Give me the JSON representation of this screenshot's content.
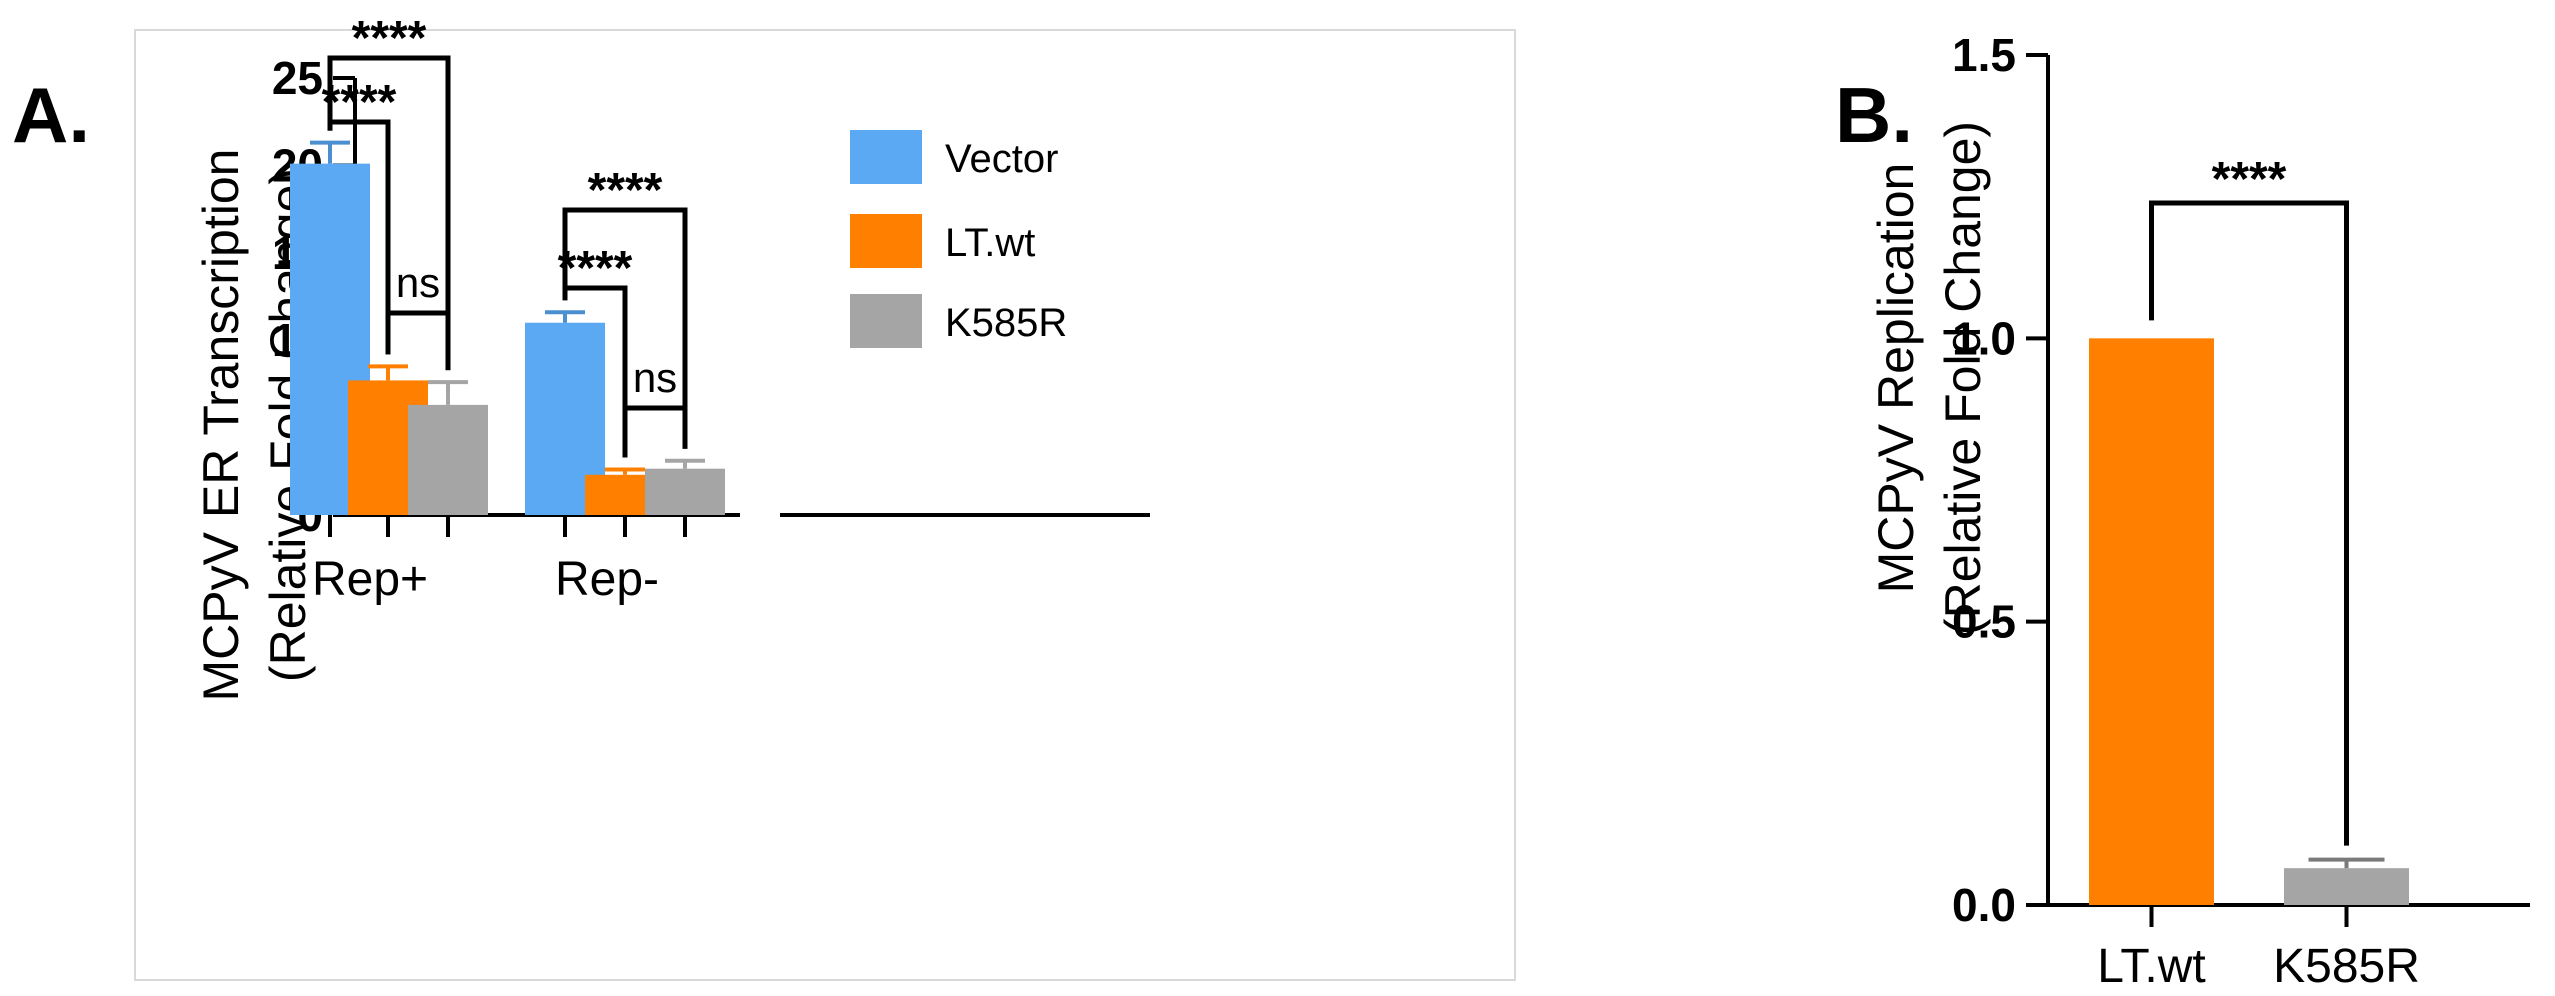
{
  "colors": {
    "vector": "#5aa9f2",
    "lt_wt": "#ff8000",
    "k585r": "#a5a5a5",
    "vector_err": "#4a8fd0",
    "lt_wt_err": "#ff8000",
    "k585r_err": "#a5a5a5"
  },
  "chart_data": [
    {
      "panel": "A.",
      "type": "bar",
      "categories": [
        "Rep+",
        "Rep-"
      ],
      "ylabel_line1": "MCPyV ER Transcription",
      "ylabel_line2": "(Relative Fold Change)",
      "ylim": [
        0,
        25
      ],
      "yticks": [
        "0",
        "5",
        "10",
        "15",
        "20",
        "25"
      ],
      "ytick_values": [
        0,
        5,
        10,
        15,
        20,
        25
      ],
      "legend_position": "right",
      "series": [
        {
          "name": "Vector",
          "color_key": "vector",
          "values": [
            20.1,
            11.0
          ],
          "errors": [
            1.2,
            0.6
          ]
        },
        {
          "name": "LT.wt",
          "color_key": "lt_wt",
          "values": [
            7.7,
            2.3
          ],
          "errors": [
            0.8,
            0.3
          ]
        },
        {
          "name": "K585R",
          "color_key": "k585r",
          "values": [
            6.3,
            2.65
          ],
          "errors": [
            1.3,
            0.45
          ]
        }
      ],
      "annotations": [
        {
          "group": 0,
          "from": 0,
          "to": 1,
          "label": "****"
        },
        {
          "group": 0,
          "from": 0,
          "to": 2,
          "label": "****"
        },
        {
          "group": 0,
          "from": 1,
          "to": 2,
          "label": "ns"
        },
        {
          "group": 1,
          "from": 0,
          "to": 1,
          "label": "****"
        },
        {
          "group": 1,
          "from": 0,
          "to": 2,
          "label": "****"
        },
        {
          "group": 1,
          "from": 1,
          "to": 2,
          "label": "ns"
        }
      ]
    },
    {
      "panel": "B.",
      "type": "bar",
      "categories": [
        "LT.wt",
        "K585R"
      ],
      "ylabel_line1": "MCPyV Replication",
      "ylabel_line2": "(Relative Fold Change)",
      "ylim": [
        0,
        1.5
      ],
      "yticks": [
        "0.0",
        "0.5",
        "1.0",
        "1.5"
      ],
      "ytick_values": [
        0,
        0.5,
        1.0,
        1.5
      ],
      "values": [
        1.0,
        0.065
      ],
      "errors": [
        0,
        0.015
      ],
      "bar_color_keys": [
        "lt_wt",
        "k585r"
      ],
      "annotations": [
        {
          "from": 0,
          "to": 1,
          "label": "****"
        }
      ]
    }
  ]
}
